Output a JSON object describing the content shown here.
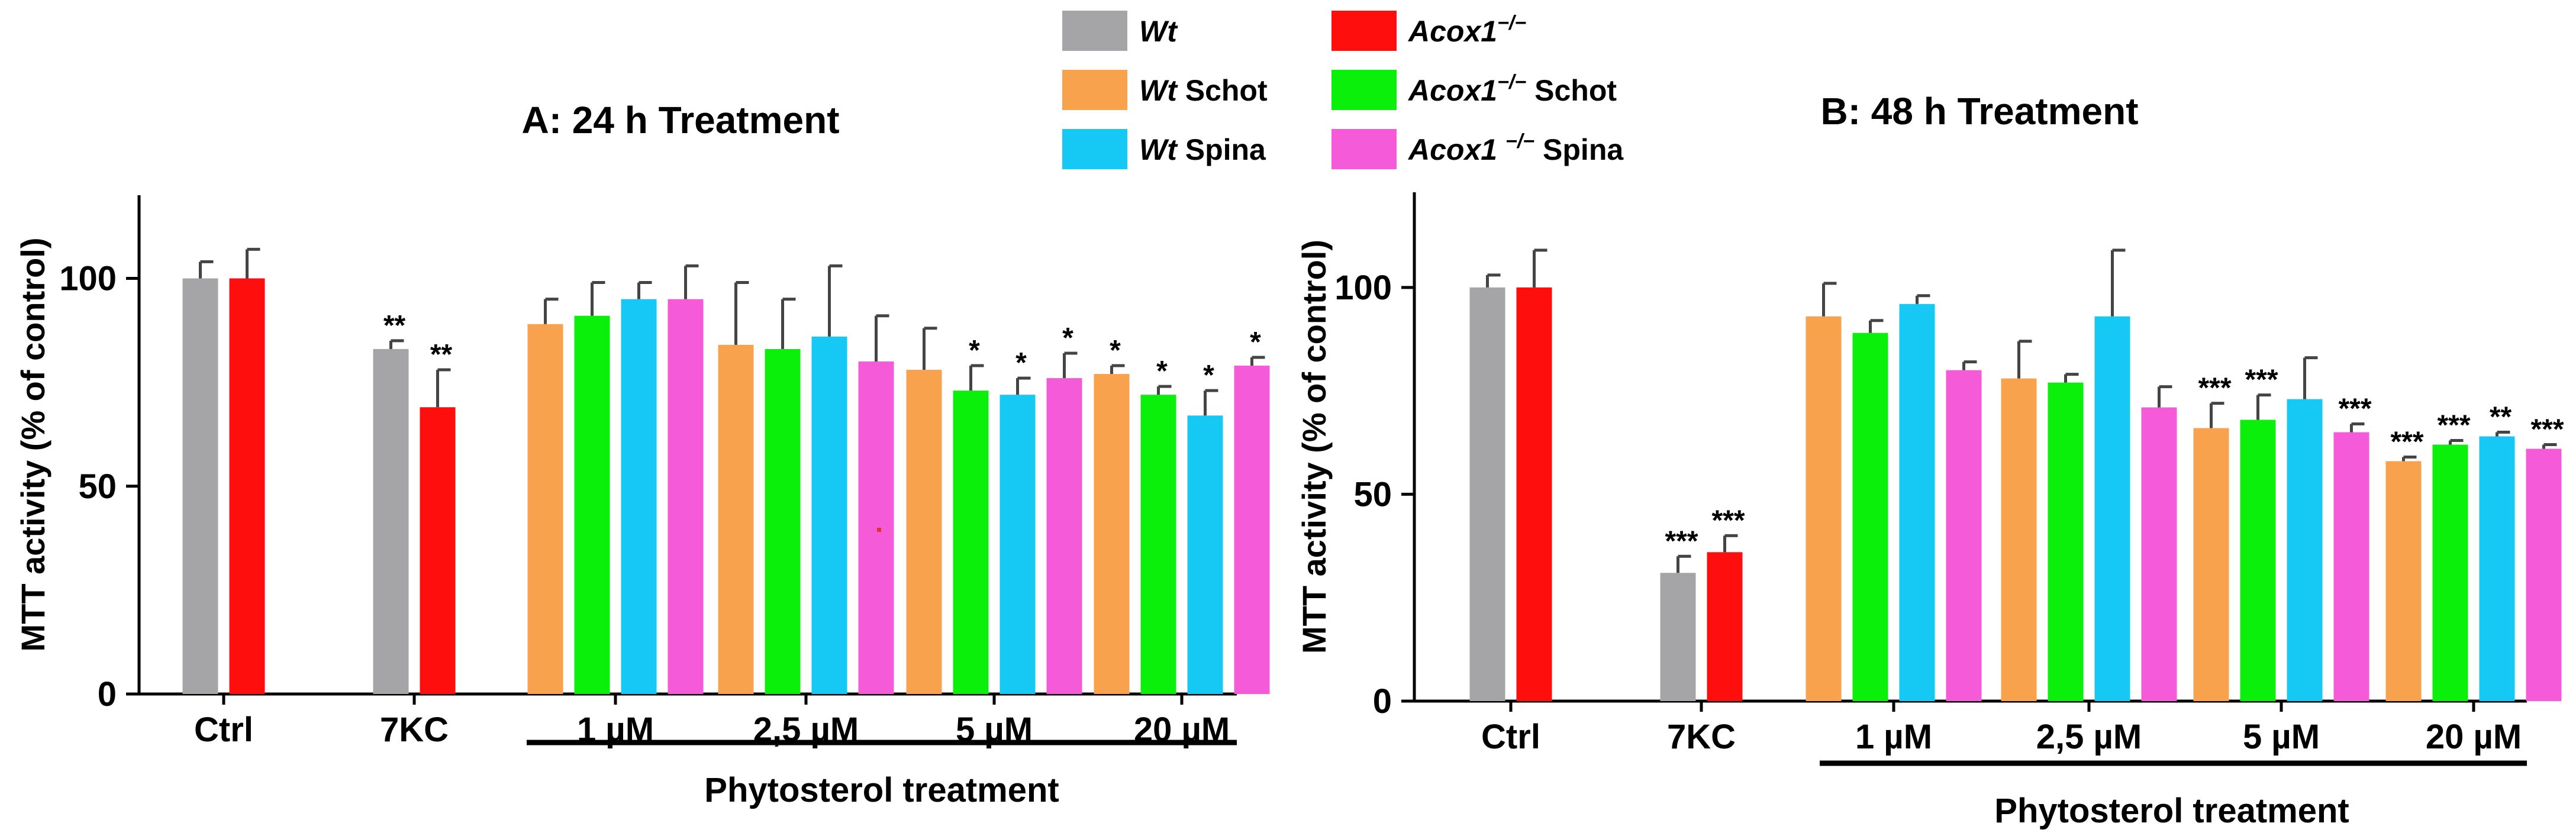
{
  "legend": [
    {
      "name_it": "Wt",
      "name": "",
      "sup": "",
      "color": "#a5a5a8"
    },
    {
      "name_it": "Wt",
      "name": " Schot",
      "sup": "",
      "color": "#f9a24e"
    },
    {
      "name_it": "Wt",
      "name": " Spina",
      "sup": "",
      "color": "#16c9f5"
    },
    {
      "name_it": "Acox1",
      "name": "",
      "sup": "−/−",
      "color": "#ff0e0e"
    },
    {
      "name_it": "Acox1",
      "name": "  Schot",
      "sup": "−/−",
      "color": "#0bf00b"
    },
    {
      "name_it": "Acox1 ",
      "name": " Spina",
      "sup": "−/−",
      "color": "#f55bd9"
    }
  ],
  "chart_data": [
    {
      "type": "bar",
      "title": "A: 24 h Treatment",
      "ylabel": "MTT activity (% of control)",
      "xlabel": "",
      "bracket_label": "Phytosterol treatment",
      "ylim": [
        0,
        120
      ],
      "yticks": [
        "0",
        "50",
        "100"
      ],
      "groups": [
        {
          "label": "Ctrl",
          "bars": [
            {
              "series": 0,
              "value": 100,
              "err": 4,
              "sig": ""
            },
            {
              "series": 3,
              "value": 100,
              "err": 7,
              "sig": ""
            }
          ]
        },
        {
          "label": "7KC",
          "bars": [
            {
              "series": 0,
              "value": 83,
              "err": 2,
              "sig": "**"
            },
            {
              "series": 3,
              "value": 69,
              "err": 9,
              "sig": "**"
            }
          ]
        },
        {
          "label": "1 µM",
          "bars": [
            {
              "series": 1,
              "value": 89,
              "err": 6,
              "sig": ""
            },
            {
              "series": 4,
              "value": 91,
              "err": 8,
              "sig": ""
            },
            {
              "series": 2,
              "value": 95,
              "err": 4,
              "sig": ""
            },
            {
              "series": 5,
              "value": 95,
              "err": 8,
              "sig": ""
            }
          ]
        },
        {
          "label": "2,5 µM",
          "bars": [
            {
              "series": 1,
              "value": 84,
              "err": 15,
              "sig": ""
            },
            {
              "series": 4,
              "value": 83,
              "err": 12,
              "sig": ""
            },
            {
              "series": 2,
              "value": 86,
              "err": 17,
              "sig": ""
            },
            {
              "series": 5,
              "value": 80,
              "err": 11,
              "sig": ""
            }
          ]
        },
        {
          "label": "5 µM",
          "bars": [
            {
              "series": 1,
              "value": 78,
              "err": 10,
              "sig": ""
            },
            {
              "series": 4,
              "value": 73,
              "err": 6,
              "sig": "*"
            },
            {
              "series": 2,
              "value": 72,
              "err": 4,
              "sig": "*"
            },
            {
              "series": 5,
              "value": 76,
              "err": 6,
              "sig": "*"
            }
          ]
        },
        {
          "label": "20 µM",
          "bars": [
            {
              "series": 1,
              "value": 77,
              "err": 2,
              "sig": "*"
            },
            {
              "series": 4,
              "value": 72,
              "err": 2,
              "sig": "*"
            },
            {
              "series": 2,
              "value": 67,
              "err": 6,
              "sig": "*"
            },
            {
              "series": 5,
              "value": 79,
              "err": 2,
              "sig": "*"
            }
          ]
        }
      ]
    },
    {
      "type": "bar",
      "title": "B: 48 h Treatment",
      "ylabel": "MTT activity (% of control)",
      "xlabel": "",
      "bracket_label": "Phytosterol treatment",
      "ylim": [
        0,
        123
      ],
      "yticks": [
        "0",
        "50",
        "100"
      ],
      "groups": [
        {
          "label": "Ctrl",
          "bars": [
            {
              "series": 0,
              "value": 100,
              "err": 3,
              "sig": ""
            },
            {
              "series": 3,
              "value": 100,
              "err": 9,
              "sig": ""
            }
          ]
        },
        {
          "label": "7KC",
          "bars": [
            {
              "series": 0,
              "value": 31,
              "err": 4,
              "sig": "***"
            },
            {
              "series": 3,
              "value": 36,
              "err": 4,
              "sig": "***"
            }
          ]
        },
        {
          "label": "1 µM",
          "bars": [
            {
              "series": 1,
              "value": 93,
              "err": 8,
              "sig": ""
            },
            {
              "series": 4,
              "value": 89,
              "err": 3,
              "sig": ""
            },
            {
              "series": 2,
              "value": 96,
              "err": 2,
              "sig": ""
            },
            {
              "series": 5,
              "value": 80,
              "err": 2,
              "sig": ""
            }
          ]
        },
        {
          "label": "2,5 µM",
          "bars": [
            {
              "series": 1,
              "value": 78,
              "err": 9,
              "sig": ""
            },
            {
              "series": 4,
              "value": 77,
              "err": 2,
              "sig": ""
            },
            {
              "series": 2,
              "value": 93,
              "err": 16,
              "sig": ""
            },
            {
              "series": 5,
              "value": 71,
              "err": 5,
              "sig": ""
            }
          ]
        },
        {
          "label": "5 µM",
          "bars": [
            {
              "series": 1,
              "value": 66,
              "err": 6,
              "sig": "***"
            },
            {
              "series": 4,
              "value": 68,
              "err": 6,
              "sig": "***"
            },
            {
              "series": 2,
              "value": 73,
              "err": 10,
              "sig": ""
            },
            {
              "series": 5,
              "value": 65,
              "err": 2,
              "sig": "***"
            }
          ]
        },
        {
          "label": "20 µM",
          "bars": [
            {
              "series": 1,
              "value": 58,
              "err": 1,
              "sig": "***"
            },
            {
              "series": 4,
              "value": 62,
              "err": 1,
              "sig": "***"
            },
            {
              "series": 2,
              "value": 64,
              "err": 1,
              "sig": "**"
            },
            {
              "series": 5,
              "value": 61,
              "err": 1,
              "sig": "***"
            }
          ]
        }
      ]
    }
  ]
}
